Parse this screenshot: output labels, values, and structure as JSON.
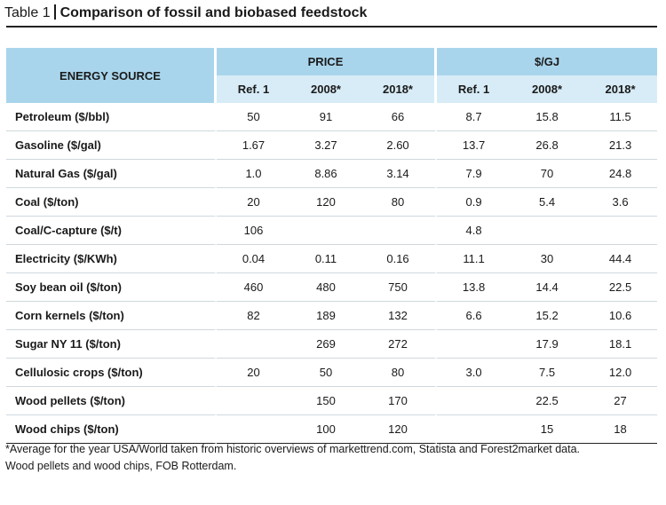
{
  "title": {
    "label": "Table 1",
    "text": "Comparison of fossil and biobased feedstock"
  },
  "table": {
    "group_headers": [
      "ENERGY SOURCE",
      "PRICE",
      "$/GJ"
    ],
    "sub_headers": [
      "Ref. 1",
      "2008*",
      "2018*",
      "Ref. 1",
      "2008*",
      "2018*"
    ],
    "rows": [
      [
        "Petroleum ($/bbl)",
        "50",
        "91",
        "66",
        "8.7",
        "15.8",
        "11.5"
      ],
      [
        "Gasoline ($/gal)",
        "1.67",
        "3.27",
        "2.60",
        "13.7",
        "26.8",
        "21.3"
      ],
      [
        "Natural Gas ($/gal)",
        "1.0",
        "8.86",
        "3.14",
        "7.9",
        "70",
        "24.8"
      ],
      [
        "Coal ($/ton)",
        "20",
        "120",
        "80",
        "0.9",
        "5.4",
        "3.6"
      ],
      [
        "Coal/C-capture ($/t)",
        "106",
        "",
        "",
        "4.8",
        "",
        ""
      ],
      [
        "Electricity ($/KWh)",
        "0.04",
        "0.11",
        "0.16",
        "11.1",
        "30",
        "44.4"
      ],
      [
        "Soy bean oil ($/ton)",
        "460",
        "480",
        "750",
        "13.8",
        "14.4",
        "22.5"
      ],
      [
        "Corn kernels ($/ton)",
        "82",
        "189",
        "132",
        "6.6",
        "15.2",
        "10.6"
      ],
      [
        "Sugar NY 11 ($/ton)",
        "",
        "269",
        "272",
        "",
        "17.9",
        "18.1"
      ],
      [
        "Cellulosic crops ($/ton)",
        "20",
        "50",
        "80",
        "3.0",
        "7.5",
        "12.0"
      ],
      [
        "Wood pellets ($/ton)",
        "",
        "150",
        "170",
        "",
        "22.5",
        "27"
      ],
      [
        "Wood chips ($/ton)",
        "",
        "100",
        "120",
        "",
        "15",
        "18"
      ]
    ]
  },
  "footnote": {
    "line1": "*Average for the year USA/World taken from historic overviews of markettrend.com, Statista and Forest2market data.",
    "line2": "Wood pellets and wood chips, FOB Rotterdam."
  }
}
